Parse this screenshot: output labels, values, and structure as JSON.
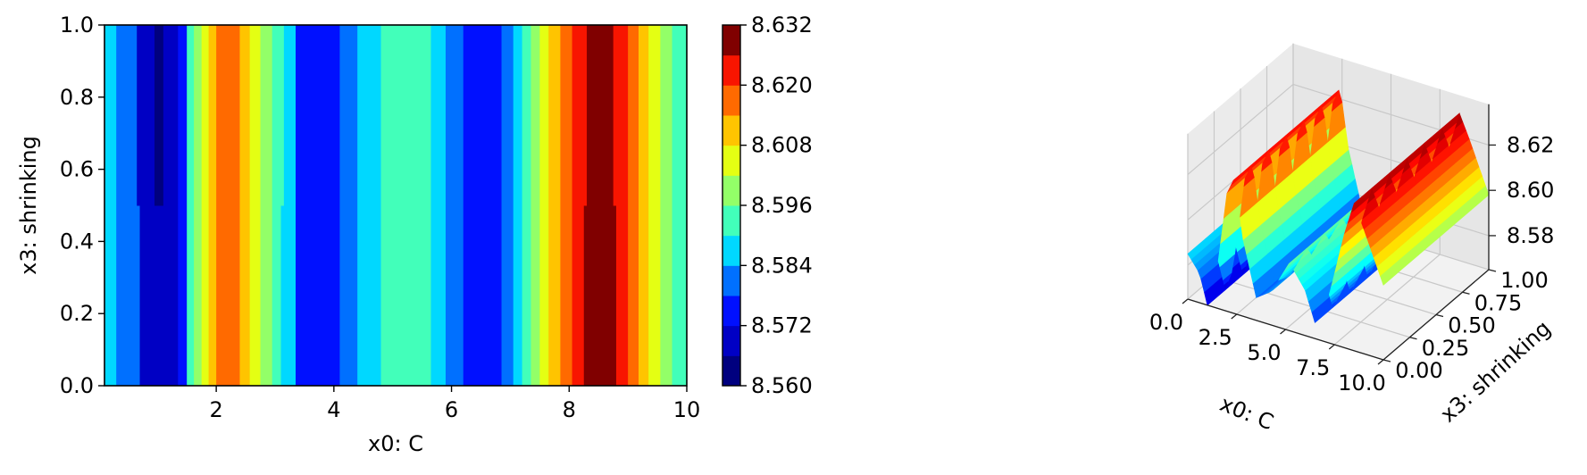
{
  "chart_data": [
    {
      "type": "contourf",
      "xlabel": "x0: C",
      "ylabel": "x3: shrinking",
      "xlim": [
        0.1,
        10
      ],
      "ylim": [
        0,
        1
      ],
      "xticks": [
        "2",
        "4",
        "6",
        "8",
        "10"
      ],
      "yticks": [
        "0.0",
        "0.2",
        "0.4",
        "0.6",
        "0.8",
        "1.0"
      ],
      "colormap": "jet",
      "levels": [
        8.56,
        8.566,
        8.572,
        8.578,
        8.584,
        8.59,
        8.596,
        8.602,
        8.608,
        8.614,
        8.62,
        8.626,
        8.632
      ],
      "level_colors": [
        "#00007f",
        "#0000c4",
        "#0010ff",
        "#0070ff",
        "#00d8ff",
        "#42ffba",
        "#93ff68",
        "#e4ff13",
        "#ffc400",
        "#ff6a00",
        "#f81500",
        "#800000"
      ],
      "colorbar_ticks": [
        "8.560",
        "8.572",
        "8.584",
        "8.596",
        "8.608",
        "8.620",
        "8.632"
      ],
      "bands_bottom": [
        {
          "x0": 0.1,
          "x1": 0.3,
          "level": 4
        },
        {
          "x0": 0.3,
          "x1": 0.7,
          "level": 3
        },
        {
          "x0": 0.7,
          "x1": 1.35,
          "level": 1
        },
        {
          "x0": 1.35,
          "x1": 1.5,
          "level": 2
        },
        {
          "x0": 1.5,
          "x1": 1.62,
          "level": 5
        },
        {
          "x0": 1.62,
          "x1": 1.75,
          "level": 6
        },
        {
          "x0": 1.75,
          "x1": 1.87,
          "level": 7
        },
        {
          "x0": 1.87,
          "x1": 2.0,
          "level": 8
        },
        {
          "x0": 2.0,
          "x1": 2.4,
          "level": 9
        },
        {
          "x0": 2.4,
          "x1": 2.57,
          "level": 8
        },
        {
          "x0": 2.57,
          "x1": 2.75,
          "level": 7
        },
        {
          "x0": 2.75,
          "x1": 2.95,
          "level": 6
        },
        {
          "x0": 2.95,
          "x1": 3.1,
          "level": 5
        },
        {
          "x0": 3.1,
          "x1": 3.35,
          "level": 4
        },
        {
          "x0": 3.35,
          "x1": 4.1,
          "level": 2
        },
        {
          "x0": 4.1,
          "x1": 4.4,
          "level": 3
        },
        {
          "x0": 4.4,
          "x1": 4.8,
          "level": 4
        },
        {
          "x0": 4.8,
          "x1": 5.65,
          "level": 5
        },
        {
          "x0": 5.65,
          "x1": 5.9,
          "level": 4
        },
        {
          "x0": 5.9,
          "x1": 6.2,
          "level": 3
        },
        {
          "x0": 6.2,
          "x1": 6.85,
          "level": 2
        },
        {
          "x0": 6.85,
          "x1": 7.05,
          "level": 3
        },
        {
          "x0": 7.05,
          "x1": 7.2,
          "level": 4
        },
        {
          "x0": 7.2,
          "x1": 7.35,
          "level": 5
        },
        {
          "x0": 7.35,
          "x1": 7.5,
          "level": 6
        },
        {
          "x0": 7.5,
          "x1": 7.65,
          "level": 7
        },
        {
          "x0": 7.65,
          "x1": 7.85,
          "level": 8
        },
        {
          "x0": 7.85,
          "x1": 8.05,
          "level": 9
        },
        {
          "x0": 8.05,
          "x1": 8.25,
          "level": 10
        },
        {
          "x0": 8.25,
          "x1": 8.8,
          "level": 11
        },
        {
          "x0": 8.8,
          "x1": 9.0,
          "level": 10
        },
        {
          "x0": 9.0,
          "x1": 9.18,
          "level": 9
        },
        {
          "x0": 9.18,
          "x1": 9.35,
          "level": 8
        },
        {
          "x0": 9.35,
          "x1": 9.55,
          "level": 7
        },
        {
          "x0": 9.55,
          "x1": 9.75,
          "level": 6
        },
        {
          "x0": 9.75,
          "x1": 10.0,
          "level": 5
        }
      ],
      "bands_top": [
        {
          "x0": 0.1,
          "x1": 0.3,
          "level": 4
        },
        {
          "x0": 0.3,
          "x1": 0.65,
          "level": 3
        },
        {
          "x0": 0.65,
          "x1": 0.95,
          "level": 1
        },
        {
          "x0": 0.95,
          "x1": 1.1,
          "level": 0
        },
        {
          "x0": 1.1,
          "x1": 1.35,
          "level": 1
        },
        {
          "x0": 1.35,
          "x1": 1.5,
          "level": 2
        },
        {
          "x0": 1.5,
          "x1": 1.62,
          "level": 5
        },
        {
          "x0": 1.62,
          "x1": 1.75,
          "level": 6
        },
        {
          "x0": 1.75,
          "x1": 1.87,
          "level": 7
        },
        {
          "x0": 1.87,
          "x1": 2.0,
          "level": 8
        },
        {
          "x0": 2.0,
          "x1": 2.4,
          "level": 9
        },
        {
          "x0": 2.4,
          "x1": 2.57,
          "level": 8
        },
        {
          "x0": 2.57,
          "x1": 2.75,
          "level": 7
        },
        {
          "x0": 2.75,
          "x1": 2.95,
          "level": 6
        },
        {
          "x0": 2.95,
          "x1": 3.15,
          "level": 5
        },
        {
          "x0": 3.15,
          "x1": 3.35,
          "level": 4
        },
        {
          "x0": 3.35,
          "x1": 4.1,
          "level": 2
        },
        {
          "x0": 4.1,
          "x1": 4.4,
          "level": 3
        },
        {
          "x0": 4.4,
          "x1": 4.8,
          "level": 4
        },
        {
          "x0": 4.8,
          "x1": 5.65,
          "level": 5
        },
        {
          "x0": 5.65,
          "x1": 5.9,
          "level": 4
        },
        {
          "x0": 5.9,
          "x1": 6.2,
          "level": 3
        },
        {
          "x0": 6.2,
          "x1": 6.85,
          "level": 2
        },
        {
          "x0": 6.85,
          "x1": 7.05,
          "level": 3
        },
        {
          "x0": 7.05,
          "x1": 7.2,
          "level": 4
        },
        {
          "x0": 7.2,
          "x1": 7.35,
          "level": 5
        },
        {
          "x0": 7.35,
          "x1": 7.5,
          "level": 6
        },
        {
          "x0": 7.5,
          "x1": 7.65,
          "level": 7
        },
        {
          "x0": 7.65,
          "x1": 7.85,
          "level": 8
        },
        {
          "x0": 7.85,
          "x1": 8.05,
          "level": 9
        },
        {
          "x0": 8.05,
          "x1": 8.3,
          "level": 10
        },
        {
          "x0": 8.3,
          "x1": 8.75,
          "level": 11
        },
        {
          "x0": 8.75,
          "x1": 9.0,
          "level": 10
        },
        {
          "x0": 9.0,
          "x1": 9.18,
          "level": 9
        },
        {
          "x0": 9.18,
          "x1": 9.35,
          "level": 8
        },
        {
          "x0": 9.35,
          "x1": 9.55,
          "level": 7
        },
        {
          "x0": 9.55,
          "x1": 9.75,
          "level": 6
        },
        {
          "x0": 9.75,
          "x1": 10.0,
          "level": 5
        }
      ],
      "y_split": 0.5
    },
    {
      "type": "surface3d",
      "xlabel": "x0: C",
      "ylabel": "x3: shrinking",
      "colormap": "jet",
      "xticks": [
        "0.0",
        "2.5",
        "5.0",
        "7.5",
        "10.0"
      ],
      "yticks": [
        "0.00",
        "0.25",
        "0.50",
        "0.75",
        "1.00"
      ],
      "zticks": [
        "8.58",
        "8.60",
        "8.62"
      ],
      "zlim": [
        8.565,
        8.632
      ],
      "surface_profile": [
        {
          "x": 0.0,
          "z": 8.585
        },
        {
          "x": 0.6,
          "z": 8.578
        },
        {
          "x": 1.0,
          "z": 8.565
        },
        {
          "x": 1.4,
          "z": 8.575
        },
        {
          "x": 2.0,
          "z": 8.617
        },
        {
          "x": 2.4,
          "z": 8.625
        },
        {
          "x": 2.8,
          "z": 8.6
        },
        {
          "x": 3.5,
          "z": 8.575
        },
        {
          "x": 4.3,
          "z": 8.58
        },
        {
          "x": 5.2,
          "z": 8.595
        },
        {
          "x": 6.0,
          "z": 8.585
        },
        {
          "x": 6.5,
          "z": 8.572
        },
        {
          "x": 7.2,
          "z": 8.585
        },
        {
          "x": 8.0,
          "z": 8.615
        },
        {
          "x": 8.5,
          "z": 8.63
        },
        {
          "x": 9.0,
          "z": 8.62
        },
        {
          "x": 10.0,
          "z": 8.598
        }
      ]
    }
  ]
}
